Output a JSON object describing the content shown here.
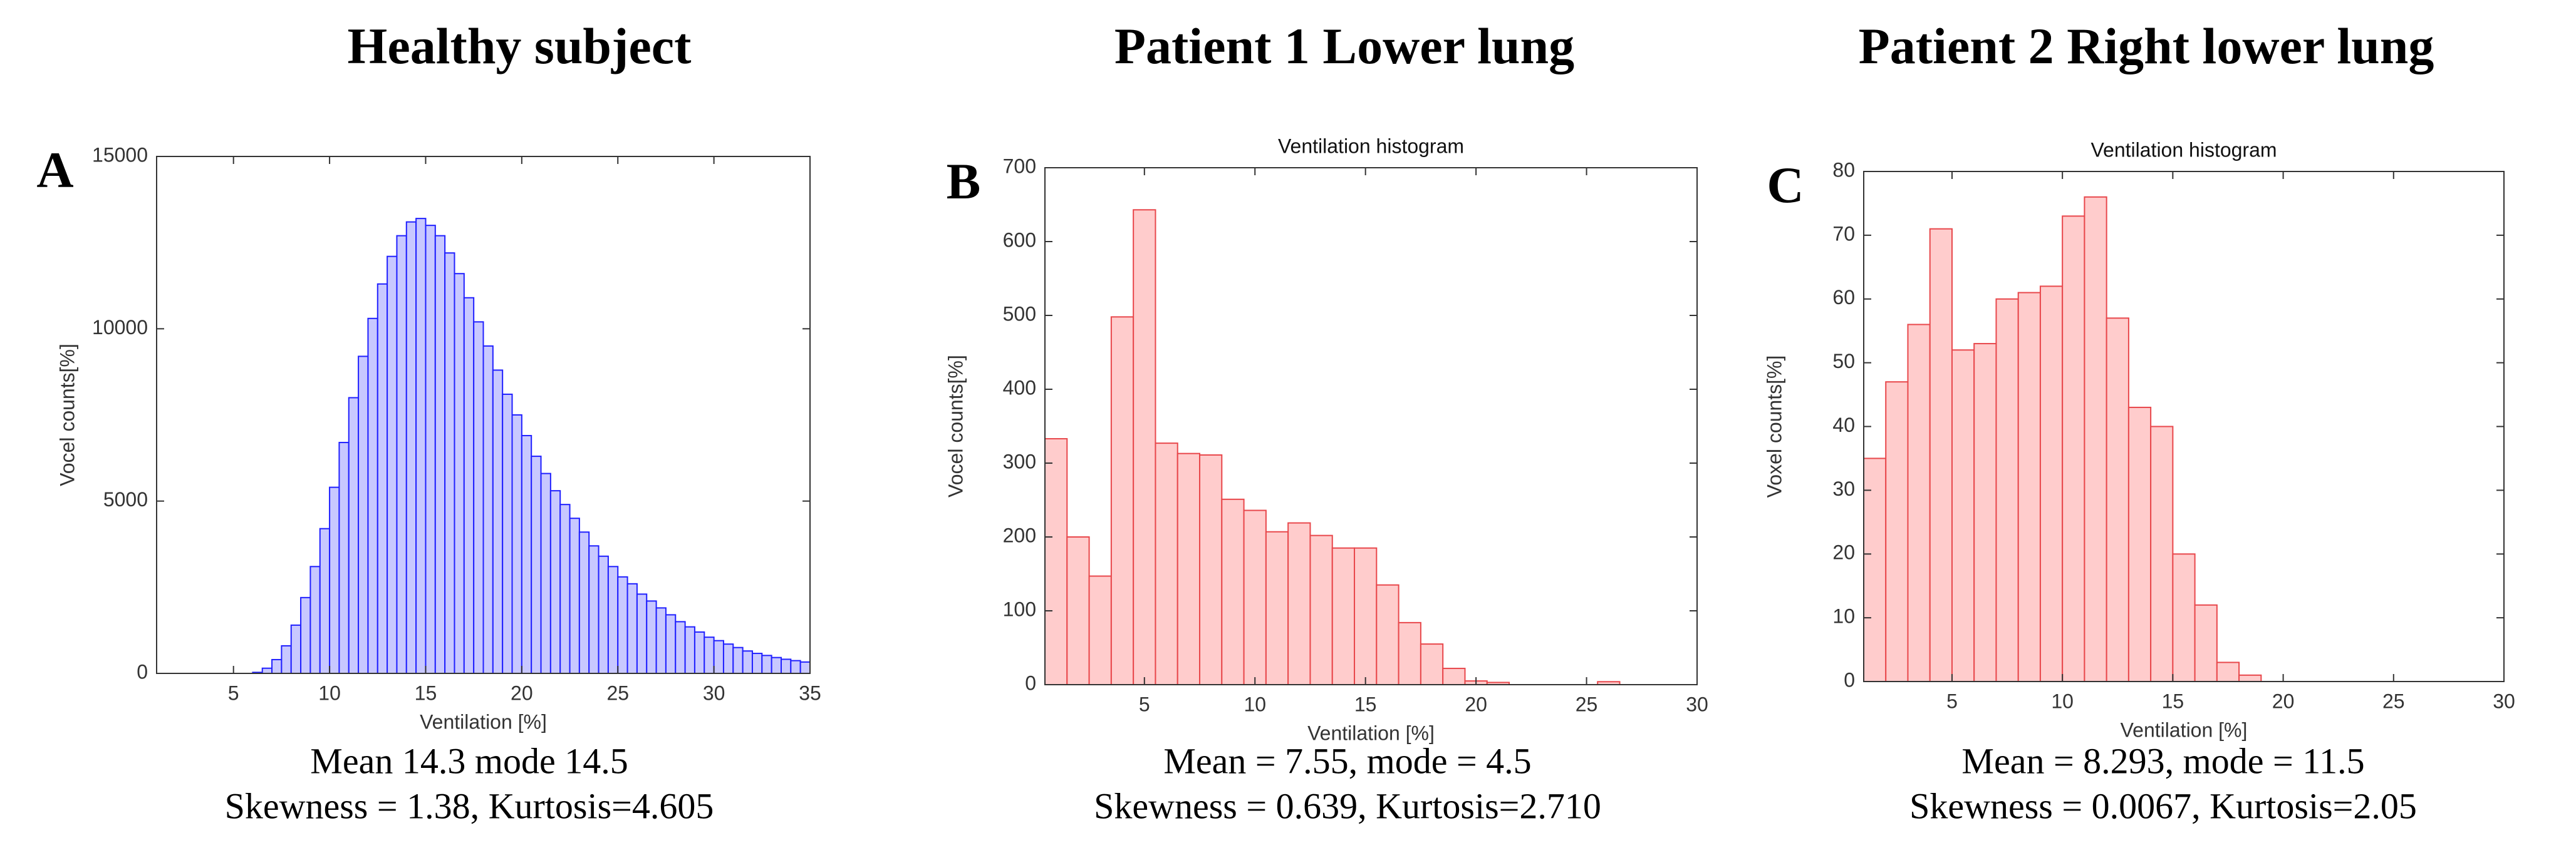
{
  "chart_data": [
    {
      "type": "histogram",
      "heading": "Healthy subject",
      "panel_label": "A",
      "xlabel": "Ventilation [%]",
      "ylabel": "Vocel counts[%]",
      "stats": [
        "Mean 14.3 mode 14.5",
        "Skewness = 1.38, Kurtosis=4.605"
      ],
      "fill": "#c8c8ff",
      "edge": "#2020ff",
      "bins": [
        5,
        5.5,
        6,
        6.5,
        7,
        7.5,
        8,
        8.5,
        9,
        9.5,
        10,
        10.5,
        11,
        11.5,
        12,
        12.5,
        13,
        13.5,
        14,
        14.5,
        15,
        15.5,
        16,
        16.5,
        17,
        17.5,
        18,
        18.5,
        19,
        19.5,
        20,
        20.5,
        21,
        21.5,
        22,
        22.5,
        23,
        23.5,
        24,
        24.5,
        25,
        25.5,
        26,
        26.5,
        27,
        27.5,
        28,
        28.5,
        29,
        29.5,
        30,
        30.5,
        31,
        31.5,
        32,
        32.5,
        33,
        33.5,
        34,
        34.5,
        35
      ],
      "values": [
        0,
        0,
        30,
        150,
        400,
        800,
        1400,
        2200,
        3100,
        4200,
        5400,
        6700,
        8000,
        9200,
        10300,
        11300,
        12100,
        12700,
        13100,
        13200,
        13000,
        12700,
        12200,
        11600,
        10900,
        10200,
        9500,
        8800,
        8100,
        7500,
        6900,
        6300,
        5800,
        5300,
        4900,
        4500,
        4100,
        3700,
        3400,
        3100,
        2800,
        2600,
        2300,
        2100,
        1900,
        1700,
        1500,
        1350,
        1200,
        1050,
        950,
        850,
        750,
        650,
        580,
        520,
        460,
        410,
        370,
        330
      ],
      "xlim": [
        1,
        35
      ],
      "xticks": [
        5,
        10,
        15,
        20,
        25,
        30,
        35
      ],
      "ylim": [
        0,
        15000
      ],
      "yticks": [
        0,
        5000,
        10000,
        15000
      ]
    },
    {
      "type": "histogram",
      "heading": "Patient 1 Lower lung",
      "panel_label": "B",
      "title": "Ventilation histogram",
      "xlabel": "Ventilation [%]",
      "ylabel": "Vocel counts[%]",
      "stats": [
        "Mean = 7.55, mode = 4.5",
        "Skewness = 0.639, Kurtosis=2.710"
      ],
      "fill": "#ffcccc",
      "edge": "#e8474b",
      "bins": [
        0.5,
        1.5,
        2.5,
        3.5,
        4.5,
        5.5,
        6.5,
        7.5,
        8.5,
        9.5,
        10.5,
        11.5,
        12.5,
        13.5,
        14.5,
        15.5,
        16.5,
        17.5,
        18.5,
        19.5,
        20.5,
        21.5,
        22.5,
        23.5,
        24.5,
        25.5,
        26.5
      ],
      "values": [
        333,
        200,
        147,
        498,
        643,
        327,
        313,
        311,
        251,
        236,
        207,
        219,
        202,
        185,
        185,
        135,
        84,
        55,
        22,
        5,
        3,
        0,
        0,
        0,
        0,
        4
      ],
      "xlim": [
        0.5,
        30
      ],
      "xticks": [
        5,
        10,
        15,
        20,
        25,
        30
      ],
      "ylim": [
        0,
        700
      ],
      "yticks": [
        0,
        100,
        200,
        300,
        400,
        500,
        600,
        700
      ]
    },
    {
      "type": "histogram",
      "heading": "Patient 2 Right lower lung",
      "panel_label": "C",
      "title": "Ventilation histogram",
      "xlabel": "Ventilation [%]",
      "ylabel": "Voxel counts[%]",
      "stats": [
        "Mean = 8.293, mode = 11.5",
        "Skewness = 0.0067, Kurtosis=2.05"
      ],
      "fill": "#ffcccc",
      "edge": "#e8474b",
      "bins": [
        1,
        2,
        3,
        4,
        5,
        6,
        7,
        8,
        9,
        10,
        11,
        12,
        13,
        14,
        15,
        16,
        17,
        18,
        19
      ],
      "values": [
        35,
        47,
        56,
        71,
        52,
        53,
        60,
        61,
        62,
        73,
        76,
        57,
        43,
        40,
        20,
        12,
        3,
        1
      ],
      "xlim": [
        1,
        30
      ],
      "xticks": [
        5,
        10,
        15,
        20,
        25,
        30
      ],
      "ylim": [
        0,
        80
      ],
      "yticks": [
        0,
        10,
        20,
        30,
        40,
        50,
        60,
        70,
        80
      ]
    }
  ]
}
